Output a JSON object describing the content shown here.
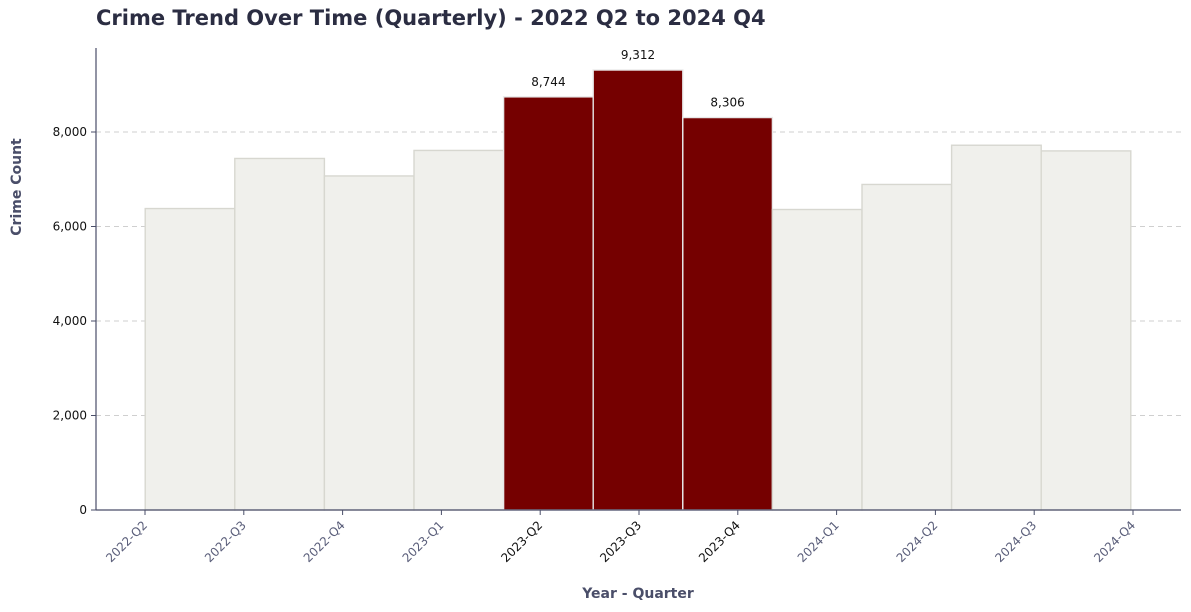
{
  "chart_data": {
    "type": "bar",
    "title": "Crime Trend Over Time (Quarterly) - 2022 Q2 to 2024 Q4",
    "xlabel": "Year - Quarter",
    "ylabel": "Crime Count",
    "categories": [
      "2022-Q2",
      "2022-Q3",
      "2022-Q4",
      "2023-Q1",
      "2023-Q2",
      "2023-Q3",
      "2023-Q4",
      "2024-Q1",
      "2024-Q2",
      "2024-Q3",
      "2024-Q4"
    ],
    "values": [
      6380,
      7440,
      7070,
      7610,
      8744,
      9312,
      8306,
      6360,
      6890,
      7720,
      7600
    ],
    "highlighted": [
      "2023-Q2",
      "2023-Q3",
      "2023-Q4"
    ],
    "data_labels": {
      "2023-Q2": "8,744",
      "2023-Q3": "9,312",
      "2023-Q4": "8,306"
    },
    "yticks": [
      0,
      2000,
      4000,
      6000,
      8000
    ],
    "ytick_labels": [
      "0",
      "2,000",
      "4,000",
      "6,000",
      "8,000"
    ],
    "ylim": [
      0,
      9778
    ],
    "grid": "horizontal dashed",
    "colors": {
      "highlight": "#750000",
      "base": "#f0f0ec",
      "base_edge": "#d7d7d0",
      "highlight_edge": "#e8e8e8",
      "axis": "#4a4e69",
      "tick_text_dim": "#5a5e7a",
      "tick_text_highlight": "#111111",
      "grid": "#cfcfcf",
      "title": "#2b2d42"
    }
  }
}
